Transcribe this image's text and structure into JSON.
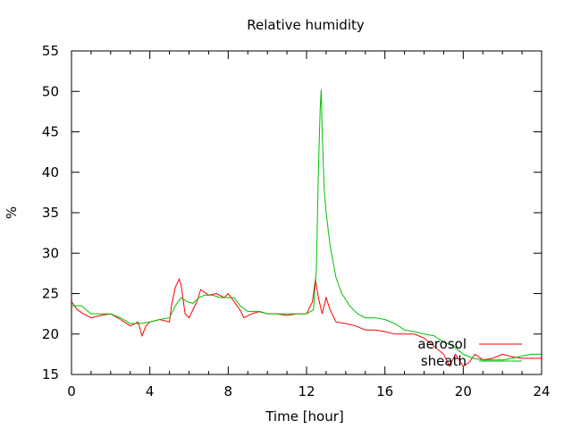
{
  "chart_data": {
    "type": "line",
    "title": "Relative humidity",
    "xlabel": "Time [hour]",
    "ylabel": "%",
    "xlim": [
      0,
      24
    ],
    "ylim": [
      15,
      55
    ],
    "xticks": [
      0,
      4,
      8,
      12,
      16,
      20,
      24
    ],
    "yticks": [
      15,
      20,
      25,
      30,
      35,
      40,
      45,
      50,
      55
    ],
    "xtick_labels": [
      "0",
      "4",
      "8",
      "12",
      "16",
      "20",
      "24"
    ],
    "ytick_labels": [
      "15",
      "20",
      "25",
      "30",
      "35",
      "40",
      "45",
      "50",
      "55"
    ],
    "grid": false,
    "legend": {
      "position": "bottom-right"
    },
    "series": [
      {
        "name": "aerosol",
        "color": "#ff0000",
        "x": [
          0,
          0.3,
          0.6,
          1.0,
          1.5,
          2.0,
          2.5,
          3.0,
          3.4,
          3.6,
          3.8,
          4.0,
          4.5,
          5.0,
          5.1,
          5.3,
          5.5,
          5.6,
          5.8,
          6.0,
          6.2,
          6.4,
          6.6,
          7.0,
          7.4,
          7.8,
          8.0,
          8.3,
          8.6,
          8.8,
          9.2,
          9.6,
          10.0,
          10.5,
          11.0,
          11.5,
          12.0,
          12.3,
          12.45,
          12.6,
          12.8,
          13.0,
          13.2,
          13.5,
          14.0,
          14.5,
          15.0,
          15.5,
          16.0,
          16.5,
          17.0,
          17.5,
          18.0,
          18.5,
          19.0,
          19.3,
          19.6,
          20.0,
          20.3,
          20.6,
          21.0,
          21.5,
          22.0,
          22.5,
          23.0,
          23.5,
          24.0
        ],
        "y": [
          24.0,
          23.0,
          22.5,
          22.0,
          22.3,
          22.5,
          21.8,
          21.0,
          21.5,
          19.8,
          21.0,
          21.5,
          21.8,
          21.5,
          23.5,
          25.8,
          26.8,
          26.0,
          22.5,
          22.0,
          23.0,
          24.0,
          25.5,
          24.8,
          25.0,
          24.5,
          25.0,
          24.0,
          23.0,
          22.0,
          22.5,
          22.8,
          22.5,
          22.5,
          22.3,
          22.5,
          22.5,
          24.0,
          26.8,
          24.5,
          22.5,
          24.5,
          23.0,
          21.5,
          21.3,
          21.0,
          20.5,
          20.5,
          20.3,
          20.0,
          20.0,
          20.0,
          19.5,
          18.5,
          17.5,
          16.0,
          17.5,
          16.0,
          16.5,
          17.5,
          16.8,
          17.0,
          17.5,
          17.2,
          17.0,
          17.0,
          17.0
        ]
      },
      {
        "name": "sheath",
        "color": "#00c000",
        "x": [
          0,
          0.5,
          1.0,
          1.5,
          2.0,
          2.5,
          3.0,
          3.5,
          4.0,
          4.5,
          5.0,
          5.3,
          5.6,
          5.9,
          6.2,
          6.5,
          6.8,
          7.2,
          7.6,
          8.0,
          8.3,
          8.6,
          9.0,
          9.5,
          10.0,
          10.5,
          11.0,
          11.5,
          12.0,
          12.35,
          12.5,
          12.6,
          12.7,
          12.75,
          12.8,
          12.9,
          13.0,
          13.2,
          13.5,
          13.8,
          14.2,
          14.6,
          15.0,
          15.5,
          16.0,
          16.5,
          17.0,
          17.5,
          18.0,
          18.5,
          19.0,
          19.5,
          20.0,
          20.5,
          21.0,
          21.5,
          22.0,
          22.5,
          23.0,
          23.5,
          24.0
        ],
        "y": [
          23.5,
          23.5,
          22.5,
          22.5,
          22.5,
          22.0,
          21.3,
          21.3,
          21.5,
          21.8,
          22.0,
          23.5,
          24.5,
          24.0,
          23.8,
          24.5,
          24.8,
          24.8,
          24.5,
          24.5,
          24.5,
          23.5,
          22.8,
          22.8,
          22.5,
          22.5,
          22.5,
          22.5,
          22.5,
          23.0,
          28.0,
          40.0,
          48.0,
          50.2,
          45.0,
          38.0,
          35.0,
          31.0,
          27.0,
          25.0,
          23.5,
          22.5,
          22.0,
          22.0,
          21.8,
          21.3,
          20.5,
          20.3,
          20.0,
          19.8,
          19.0,
          18.5,
          17.5,
          17.0,
          16.8,
          16.8,
          16.8,
          17.0,
          17.3,
          17.5,
          17.5
        ]
      }
    ]
  }
}
